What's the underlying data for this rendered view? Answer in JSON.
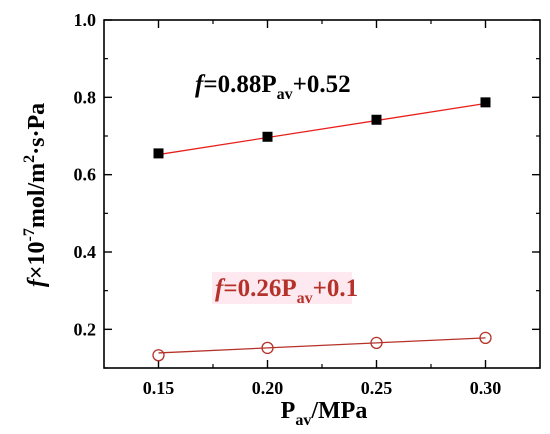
{
  "chart_data": {
    "type": "scatter",
    "xlim": [
      0.125,
      0.325
    ],
    "ylim": [
      0.1,
      1.0
    ],
    "x_ticks": [
      "0.15",
      "0.20",
      "0.25",
      "0.30"
    ],
    "x_tick_values": [
      0.15,
      0.2,
      0.25,
      0.3
    ],
    "y_ticks": [
      "0.2",
      "0.4",
      "0.6",
      "0.8",
      "1.0"
    ],
    "y_tick_values": [
      0.2,
      0.4,
      0.6,
      0.8,
      1.0
    ],
    "x_minor_values": [
      0.175,
      0.225,
      0.275
    ],
    "y_minor_values": [
      0.1,
      0.3,
      0.5,
      0.7,
      0.9
    ],
    "xlabel": {
      "main": "P",
      "sub": "av",
      "rest": "/MPa"
    },
    "ylabel": {
      "f": "f",
      "times": "×10",
      "exp1": "-7",
      "mid": "mol/m",
      "exp2": "2",
      "end": "·s·Pa"
    },
    "grid": false,
    "series": [
      {
        "marker": "filled-square",
        "color": "#000000",
        "fit_color": "#e8201c",
        "x": [
          0.15,
          0.2,
          0.25,
          0.3
        ],
        "y": [
          0.655,
          0.698,
          0.742,
          0.787
        ],
        "fit": {
          "slope": 0.88,
          "intercept": 0.52
        },
        "label": {
          "f": "f",
          "eq1": "=0.88P",
          "sub": "av",
          "eq2": "+0.52"
        }
      },
      {
        "marker": "open-circle",
        "color": "#b5322a",
        "fit_color": "#b5322a",
        "x": [
          0.15,
          0.2,
          0.25,
          0.3
        ],
        "y": [
          0.133,
          0.152,
          0.165,
          0.178
        ],
        "fit": {
          "slope": 0.26,
          "intercept": 0.1
        },
        "label": {
          "f": "f",
          "eq1": "=0.26P",
          "sub": "av",
          "eq2": "+0.1"
        }
      }
    ]
  }
}
